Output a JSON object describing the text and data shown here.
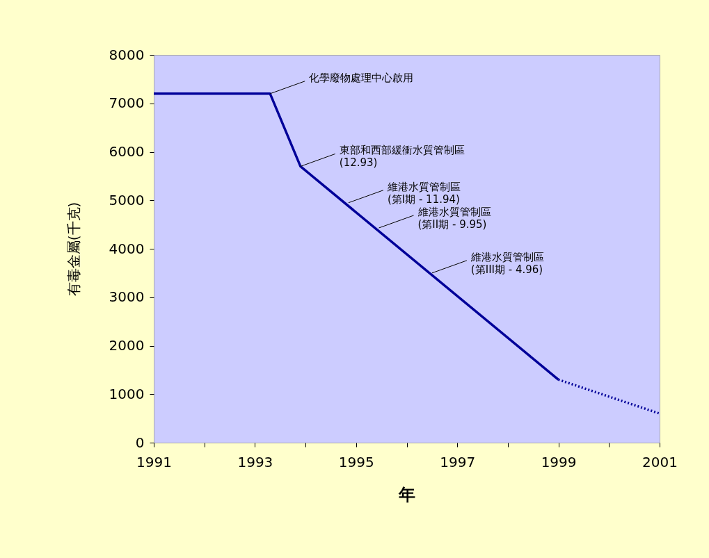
{
  "chart_data": {
    "type": "line",
    "xlabel": "年",
    "ylabel": "有毒金屬(千克)",
    "xlim": [
      1991,
      2001
    ],
    "xticks": [
      1991,
      {
        "value": 1992,
        "label": null
      },
      1993,
      {
        "value": 1994,
        "label": null
      },
      1995,
      {
        "value": 1996,
        "label": null
      },
      1997,
      {
        "value": 1998,
        "label": null
      },
      1999,
      {
        "value": 2000,
        "label": null
      },
      2001
    ],
    "ylim": [
      0,
      8000
    ],
    "yticks": [
      0,
      1000,
      2000,
      3000,
      4000,
      5000,
      6000,
      7000,
      8000
    ],
    "grid": false,
    "marker": "none",
    "series": [
      {
        "color": "#000099",
        "line_style": "solid",
        "x": [
          1991,
          1993.3,
          1993.9,
          1999
        ],
        "values": [
          7200,
          7200,
          5700,
          1300
        ]
      },
      {
        "color": "#000099",
        "line_style": "dotted",
        "x": [
          1999,
          2001
        ],
        "values": [
          1300,
          600
        ]
      }
    ],
    "annotations": [
      {
        "text": "化學廢物處理中心啟用",
        "x": 1993.3,
        "y": 7200
      },
      {
        "text": "東部和西部緩衝水質管制區\n(12.93)",
        "x": 1993.9,
        "y": 5700
      },
      {
        "text": "維港水質管制區\n(第I期 - 11.94)",
        "x": 1994.85,
        "y": 4950
      },
      {
        "text": "維港水質管制區\n(第II期 - 9.95)",
        "x": 1995.45,
        "y": 4430
      },
      {
        "text": "維港水質管制區\n(第III期 - 4.96)",
        "x": 1996.5,
        "y": 3500
      }
    ]
  }
}
